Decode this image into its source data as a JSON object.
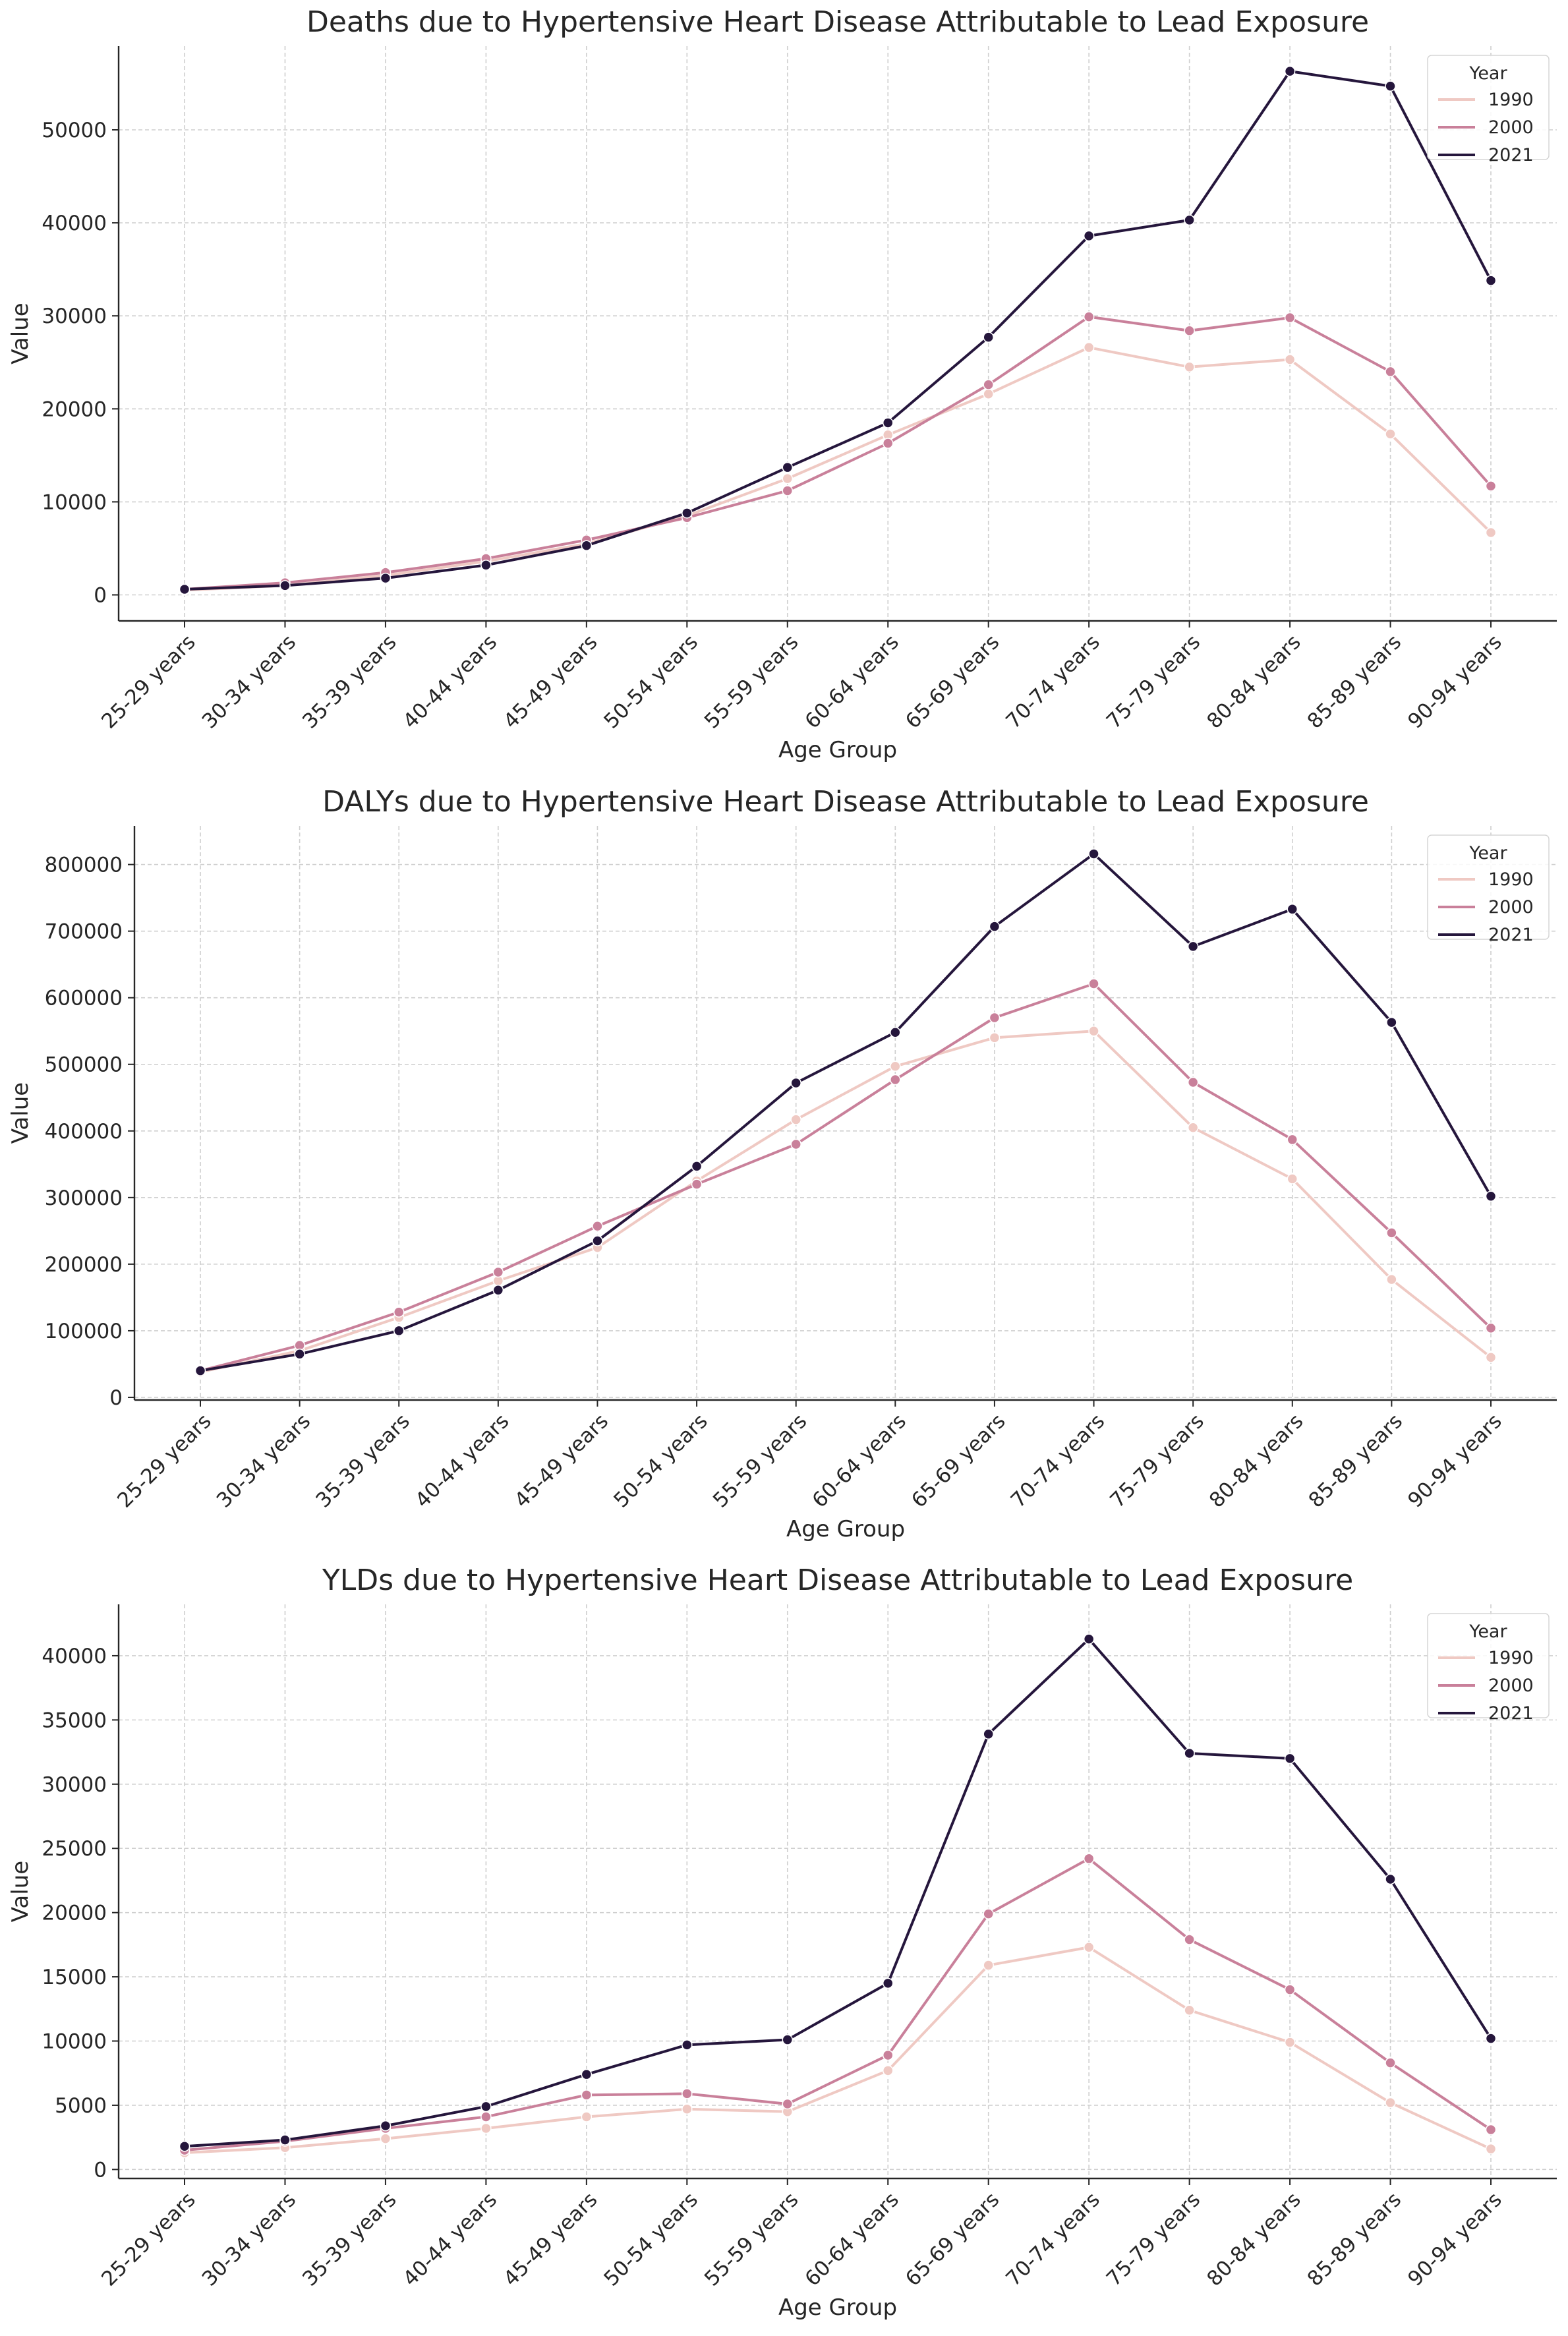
{
  "chart_data": [
    {
      "type": "line",
      "title": "Deaths due to Hypertensive Heart Disease Attributable to Lead Exposure",
      "xlabel": "Age Group",
      "ylabel": "Value",
      "categories": [
        "25-29 years",
        "30-34 years",
        "35-39 years",
        "40-44 years",
        "45-49 years",
        "50-54 years",
        "55-59 years",
        "60-64 years",
        "65-69 years",
        "70-74 years",
        "75-79 years",
        "80-84 years",
        "85-89 years",
        "90-94 years"
      ],
      "ylim": [
        -2800,
        59000
      ],
      "yticks": [
        0,
        10000,
        20000,
        30000,
        40000,
        50000
      ],
      "grid": true,
      "legend": {
        "title": "Year",
        "position": "top-right"
      },
      "series": [
        {
          "name": "1990",
          "color": "#efc9c3",
          "values": [
            500,
            1000,
            2100,
            3600,
            5500,
            8500,
            12500,
            17200,
            21600,
            26600,
            24500,
            25300,
            17300,
            6700
          ]
        },
        {
          "name": "2000",
          "color": "#c9809a",
          "values": [
            600,
            1300,
            2400,
            3900,
            5900,
            8300,
            11200,
            16300,
            22600,
            29900,
            28400,
            29800,
            24000,
            11700
          ]
        },
        {
          "name": "2021",
          "color": "#25163c",
          "values": [
            600,
            1000,
            1800,
            3200,
            5300,
            8800,
            13700,
            18500,
            27700,
            38600,
            40300,
            56300,
            54700,
            33800
          ]
        }
      ]
    },
    {
      "type": "line",
      "title": "DALYs due to Hypertensive Heart Disease Attributable to Lead Exposure",
      "xlabel": "Age Group",
      "ylabel": "Value",
      "categories": [
        "25-29 years",
        "30-34 years",
        "35-39 years",
        "40-44 years",
        "45-49 years",
        "50-54 years",
        "55-59 years",
        "60-64 years",
        "65-69 years",
        "70-74 years",
        "75-79 years",
        "80-84 years",
        "85-89 years",
        "90-94 years"
      ],
      "ylim": [
        -4000,
        858000
      ],
      "yticks": [
        0,
        100000,
        200000,
        300000,
        400000,
        500000,
        600000,
        700000,
        800000
      ],
      "grid": true,
      "legend": {
        "title": "Year",
        "position": "top-right"
      },
      "series": [
        {
          "name": "1990",
          "color": "#efc9c3",
          "values": [
            38000,
            70000,
            120000,
            175000,
            225000,
            325000,
            417000,
            497000,
            540000,
            550000,
            405000,
            328000,
            177000,
            60000
          ]
        },
        {
          "name": "2000",
          "color": "#c9809a",
          "values": [
            40000,
            78000,
            128000,
            188000,
            257000,
            320000,
            380000,
            477000,
            570000,
            621000,
            473000,
            387000,
            247000,
            104000
          ]
        },
        {
          "name": "2021",
          "color": "#25163c",
          "values": [
            40000,
            65000,
            100000,
            161000,
            235000,
            347000,
            472000,
            548000,
            707000,
            816000,
            677000,
            733000,
            563000,
            302000
          ]
        }
      ]
    },
    {
      "type": "line",
      "title": "YLDs due to Hypertensive Heart Disease Attributable to Lead Exposure",
      "xlabel": "Age Group",
      "ylabel": "Value",
      "categories": [
        "25-29 years",
        "30-34 years",
        "35-39 years",
        "40-44 years",
        "45-49 years",
        "50-54 years",
        "55-59 years",
        "60-64 years",
        "65-69 years",
        "70-74 years",
        "75-79 years",
        "80-84 years",
        "85-89 years",
        "90-94 years"
      ],
      "ylim": [
        -700,
        44000
      ],
      "yticks": [
        0,
        5000,
        10000,
        15000,
        20000,
        25000,
        30000,
        35000,
        40000
      ],
      "grid": true,
      "legend": {
        "title": "Year",
        "position": "top-right"
      },
      "series": [
        {
          "name": "1990",
          "color": "#efc9c3",
          "values": [
            1300,
            1700,
            2400,
            3200,
            4100,
            4700,
            4500,
            7700,
            15900,
            17300,
            12400,
            9900,
            5200,
            1600
          ]
        },
        {
          "name": "2000",
          "color": "#c9809a",
          "values": [
            1500,
            2200,
            3200,
            4100,
            5800,
            5900,
            5100,
            8900,
            19900,
            24200,
            17900,
            14000,
            8300,
            3100
          ]
        },
        {
          "name": "2021",
          "color": "#25163c",
          "values": [
            1800,
            2300,
            3400,
            4900,
            7400,
            9700,
            10100,
            14500,
            33900,
            41300,
            32400,
            32000,
            22600,
            10200
          ]
        }
      ]
    }
  ]
}
